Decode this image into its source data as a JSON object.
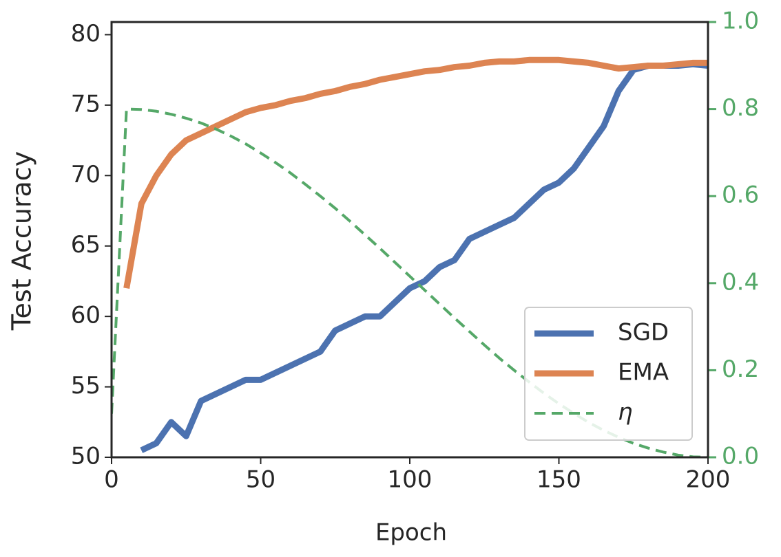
{
  "chart_data": {
    "type": "line",
    "xlabel": "Epoch",
    "ylabel": "Test Accuracy",
    "x": [
      0,
      5,
      10,
      15,
      20,
      25,
      30,
      35,
      40,
      45,
      50,
      55,
      60,
      65,
      70,
      75,
      80,
      85,
      90,
      95,
      100,
      105,
      110,
      115,
      120,
      125,
      130,
      135,
      140,
      145,
      150,
      155,
      160,
      165,
      170,
      175,
      180,
      185,
      190,
      195,
      200
    ],
    "series": [
      {
        "name": "SGD",
        "color": "#4c72b0",
        "axis": "y",
        "dashed": false,
        "values": [
          null,
          null,
          50.5,
          51,
          52.5,
          51.5,
          54,
          54.5,
          55,
          55.5,
          55.5,
          56,
          56.5,
          57,
          57.5,
          59,
          59.5,
          60,
          60,
          61,
          62,
          62.5,
          63.5,
          64,
          65.5,
          66,
          66.5,
          67,
          68,
          69,
          69.5,
          70.5,
          72,
          73.5,
          76,
          77.5,
          77.8,
          77.8,
          77.8,
          77.9,
          77.8
        ]
      },
      {
        "name": "EMA",
        "color": "#dd8452",
        "axis": "y",
        "dashed": false,
        "values": [
          null,
          62,
          68,
          70,
          71.5,
          72.5,
          73,
          73.5,
          74,
          74.5,
          74.8,
          75,
          75.3,
          75.5,
          75.8,
          76,
          76.3,
          76.5,
          76.8,
          77,
          77.2,
          77.4,
          77.5,
          77.7,
          77.8,
          78,
          78.1,
          78.1,
          78.2,
          78.2,
          78.2,
          78.1,
          78,
          77.8,
          77.6,
          77.7,
          77.8,
          77.8,
          77.9,
          78,
          78
        ]
      },
      {
        "name": "η",
        "color": "#55a868",
        "axis": "y2",
        "dashed": true,
        "values": [
          0.1,
          0.8,
          0.799,
          0.795,
          0.788,
          0.779,
          0.768,
          0.754,
          0.738,
          0.72,
          0.699,
          0.677,
          0.653,
          0.627,
          0.6,
          0.572,
          0.542,
          0.511,
          0.48,
          0.448,
          0.416,
          0.384,
          0.352,
          0.32,
          0.289,
          0.258,
          0.228,
          0.2,
          0.173,
          0.147,
          0.123,
          0.101,
          0.08,
          0.062,
          0.046,
          0.032,
          0.021,
          0.012,
          0.005,
          0.001,
          0
        ]
      }
    ],
    "xlim": [
      0,
      200
    ],
    "xticks": [
      0,
      50,
      100,
      150,
      200
    ],
    "ylim": [
      50,
      80.9
    ],
    "yticks": [
      50,
      55,
      60,
      65,
      70,
      75,
      80
    ],
    "y2lim": [
      0,
      1
    ],
    "y2ticks": [
      {
        "value": 0,
        "label": "0.0"
      },
      0.2,
      0.4,
      0.6,
      0.8,
      {
        "value": 1,
        "label": "1.0"
      }
    ],
    "y2color": "#55a868",
    "legend": "lower right",
    "grid": false
  }
}
